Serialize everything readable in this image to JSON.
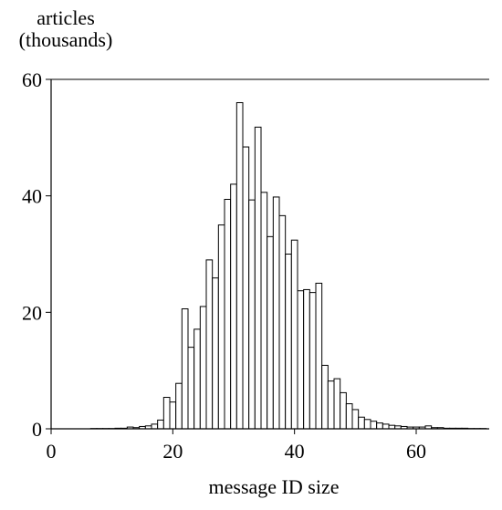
{
  "chart_data": {
    "type": "bar",
    "title": "",
    "xlabel": "message ID size",
    "ylabel_lines": [
      "articles",
      "(thousands)"
    ],
    "xlim": [
      0,
      72
    ],
    "ylim": [
      0,
      60
    ],
    "x_ticks": [
      0,
      20,
      40,
      60
    ],
    "y_ticks": [
      0,
      20,
      40,
      60
    ],
    "bar_width": 1,
    "grid": false,
    "x": [
      7,
      8,
      9,
      10,
      11,
      12,
      13,
      14,
      15,
      16,
      17,
      18,
      19,
      20,
      21,
      22,
      23,
      24,
      25,
      26,
      27,
      28,
      29,
      30,
      31,
      32,
      33,
      34,
      35,
      36,
      37,
      38,
      39,
      40,
      41,
      42,
      43,
      44,
      45,
      46,
      47,
      48,
      49,
      50,
      51,
      52,
      53,
      54,
      55,
      56,
      57,
      58,
      59,
      60,
      61,
      62,
      63,
      64,
      65,
      66,
      67,
      68,
      69,
      70,
      71
    ],
    "values": [
      0.05,
      0.05,
      0.05,
      0.05,
      0.1,
      0.1,
      0.3,
      0.2,
      0.4,
      0.5,
      0.8,
      1.5,
      5.4,
      4.6,
      7.8,
      20.6,
      14.0,
      17.1,
      21.0,
      29.0,
      25.9,
      35.0,
      39.4,
      42.0,
      56.0,
      48.4,
      39.3,
      51.8,
      40.6,
      33.0,
      39.8,
      36.6,
      30.0,
      32.4,
      23.7,
      23.9,
      23.4,
      25.0,
      10.9,
      8.2,
      8.6,
      6.2,
      4.3,
      3.3,
      2.0,
      1.6,
      1.3,
      1.0,
      0.8,
      0.6,
      0.5,
      0.4,
      0.3,
      0.3,
      0.3,
      0.5,
      0.2,
      0.2,
      0.1,
      0.1,
      0.1,
      0.1,
      0.05,
      0.05,
      0.05
    ]
  }
}
